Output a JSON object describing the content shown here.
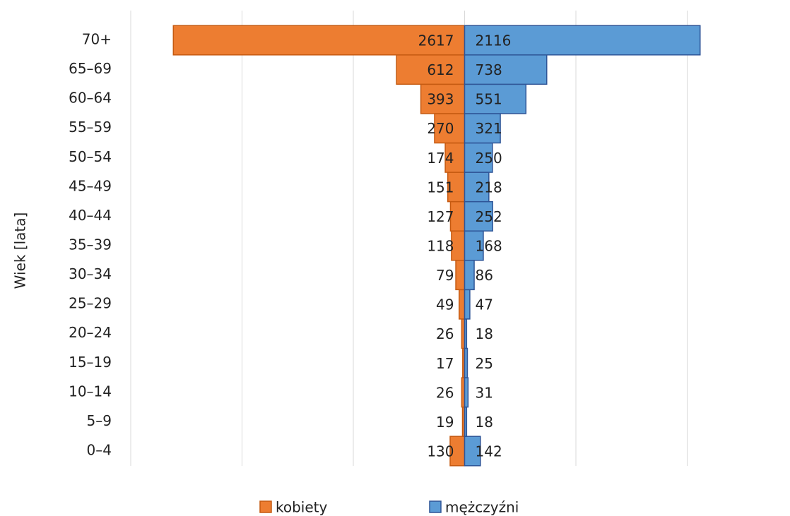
{
  "chart_data": {
    "type": "pyramid",
    "ylabel": "Wiek [lata]",
    "categories": [
      "0–4",
      "5–9",
      "10–14",
      "15–19",
      "20–24",
      "25–29",
      "30–34",
      "35–39",
      "40–44",
      "45–49",
      "50–54",
      "55–59",
      "60–64",
      "65–69",
      "70+"
    ],
    "series": [
      {
        "name": "kobiety",
        "color": "#ed7d31",
        "side": "left",
        "values": [
          130,
          19,
          26,
          17,
          26,
          49,
          79,
          118,
          127,
          151,
          174,
          270,
          393,
          612,
          2617
        ]
      },
      {
        "name": "mężczyźni",
        "color": "#5b9bd5",
        "side": "right",
        "values": [
          142,
          18,
          31,
          25,
          18,
          47,
          86,
          168,
          252,
          218,
          250,
          321,
          551,
          738,
          2116
        ]
      }
    ],
    "xlim": [
      -3000,
      3000
    ],
    "xticks": [
      -3000,
      -2000,
      -1000,
      0,
      1000,
      2000
    ],
    "xtick_labels": false,
    "grid": true,
    "legend": "bottom"
  }
}
